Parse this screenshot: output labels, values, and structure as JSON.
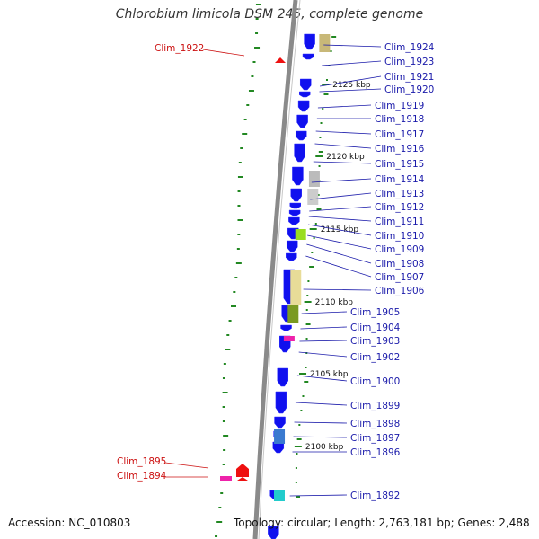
{
  "title": "Chlorobium limicola DSM 245, complete genome",
  "accession": "Accession: NC_010803",
  "summary": "Topology: circular; Length: 2,763,181 bp; Genes: 2,488",
  "colors": {
    "forward_gene": "#1010ee",
    "highlight_gene": "#ee1010",
    "label_blue": "#1a1aaa",
    "label_red": "#cc1111",
    "gc_skew": "#228822",
    "backbone": "#8a8a8a"
  },
  "ticks": [
    "2125 kbp",
    "2120 kbp",
    "2115 kbp",
    "2110 kbp",
    "2105 kbp",
    "2100 kbp"
  ],
  "genes_right": [
    "Clim_1924",
    "Clim_1923",
    "Clim_1921",
    "Clim_1920",
    "Clim_1919",
    "Clim_1918",
    "Clim_1917",
    "Clim_1916",
    "Clim_1915",
    "Clim_1914",
    "Clim_1913",
    "Clim_1912",
    "Clim_1911",
    "Clim_1910",
    "Clim_1909",
    "Clim_1908",
    "Clim_1907",
    "Clim_1906",
    "Clim_1905",
    "Clim_1904",
    "Clim_1903",
    "Clim_1902",
    "Clim_1900",
    "Clim_1899",
    "Clim_1898",
    "Clim_1897",
    "Clim_1896",
    "Clim_1892"
  ],
  "genes_left": [
    "Clim_1922",
    "Clim_1895",
    "Clim_1894"
  ]
}
